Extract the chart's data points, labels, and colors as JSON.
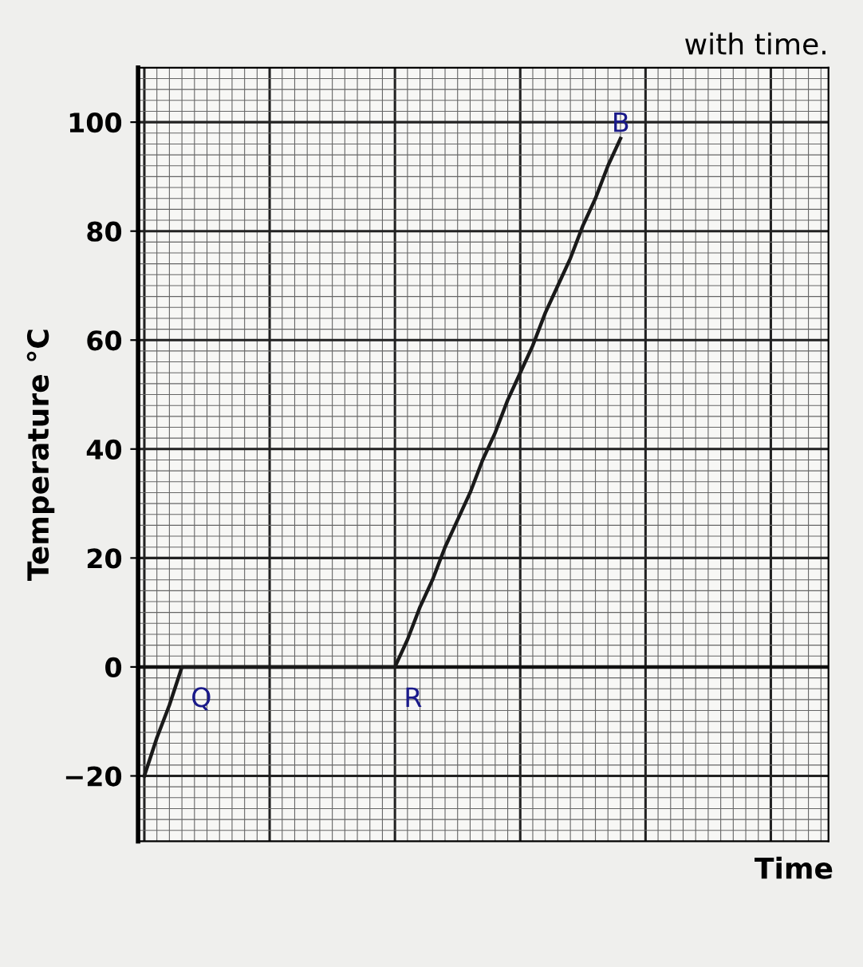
{
  "chart_data": {
    "type": "line",
    "title": "with time.",
    "xlabel": "Time",
    "ylabel": "Temperature °C",
    "categories": [
      null,
      null,
      null,
      null,
      null,
      null,
      null,
      null,
      null,
      null,
      null,
      null,
      null,
      null,
      null,
      null,
      null,
      null,
      null,
      null,
      null,
      null,
      null,
      null,
      null,
      null,
      null,
      null,
      null,
      null,
      null,
      null,
      null,
      null,
      null,
      null,
      null,
      null,
      null
    ],
    "series": [
      {
        "values": [
          -20,
          -13,
          -7,
          0,
          0,
          0,
          0,
          0,
          0,
          0,
          0,
          0,
          0,
          0,
          0,
          0,
          0,
          0,
          0,
          0,
          0,
          5,
          11,
          16,
          22,
          27,
          32,
          38,
          43,
          49,
          54,
          59,
          65,
          70,
          75,
          81,
          86,
          92,
          97
        ],
        "color": "#1a1a1a",
        "value_labels": [
          null,
          null,
          null,
          "Q",
          null,
          null,
          null,
          null,
          null,
          null,
          null,
          null,
          null,
          null,
          null,
          null,
          null,
          null,
          null,
          null,
          "R",
          null,
          null,
          null,
          null,
          null,
          null,
          null,
          null,
          null,
          null,
          null,
          null,
          null,
          null,
          null,
          null,
          null,
          "B"
        ]
      }
    ],
    "ylim": [
      -32,
      110
    ],
    "yticks": [
      {
        "value": -20,
        "label": "−20"
      },
      0,
      20,
      40,
      60,
      80,
      100
    ],
    "grid": true,
    "marker": "none",
    "line_style": "solid"
  }
}
